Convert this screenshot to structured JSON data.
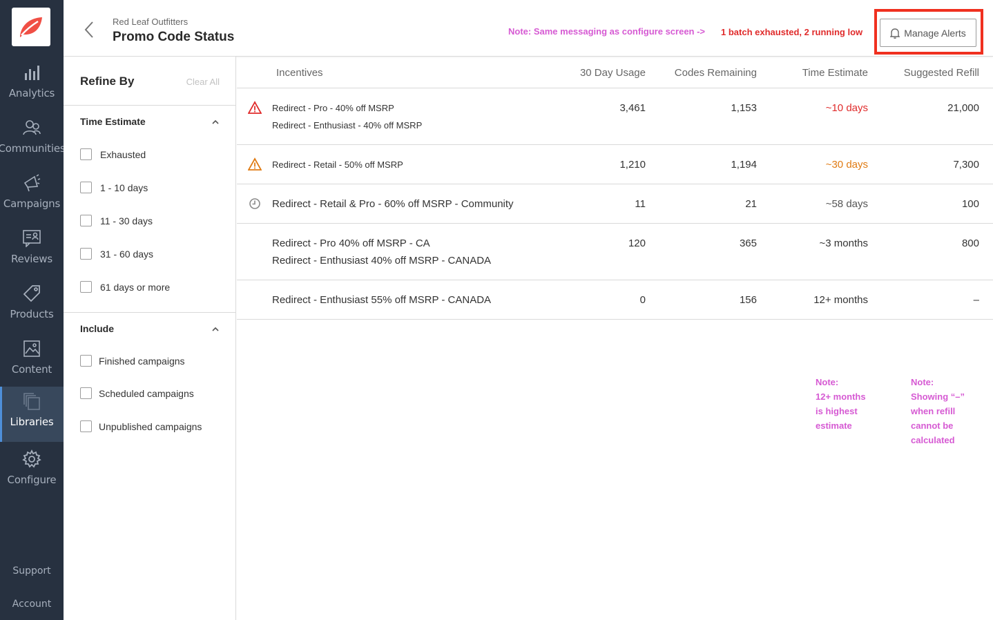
{
  "nav": {
    "items": [
      {
        "label": "Analytics"
      },
      {
        "label": "Communities"
      },
      {
        "label": "Campaigns"
      },
      {
        "label": "Reviews"
      },
      {
        "label": "Products"
      },
      {
        "label": "Content"
      },
      {
        "label": "Libraries"
      },
      {
        "label": "Configure"
      }
    ],
    "active": "Libraries",
    "support": "Support",
    "account": "Account"
  },
  "header": {
    "breadcrumb": "Red Leaf Outfitters",
    "title": "Promo Code Status",
    "note": "Note: Same messaging as configure screen ->",
    "status": "1 batch exhausted, 2 running low",
    "manage_alerts": "Manage Alerts"
  },
  "filters": {
    "title": "Refine By",
    "clear_all": "Clear All",
    "time_estimate": {
      "title": "Time Estimate",
      "options": [
        "Exhausted",
        "1 - 10 days",
        "11 - 30 days",
        "31 - 60 days",
        "61 days or more"
      ]
    },
    "include": {
      "title": "Include",
      "options": [
        "Finished campaigns",
        "Scheduled campaigns",
        "Unpublished campaigns"
      ]
    }
  },
  "table": {
    "columns": [
      "Incentives",
      "30 Day Usage",
      "Codes Remaining",
      "Time Estimate",
      "Suggested Refill"
    ],
    "rows": [
      {
        "icon": "warning-red",
        "incentives": [
          "Redirect - Pro - 40% off MSRP",
          "Redirect - Enthusiast - 40% off MSRP"
        ],
        "usage": "3,461",
        "remaining": "1,153",
        "estimate": "~10 days",
        "refill": "21,000"
      },
      {
        "icon": "warning-orange",
        "incentives": [
          "Redirect - Retail - 50% off MSRP"
        ],
        "usage": "1,210",
        "remaining": "1,194",
        "estimate": "~30 days",
        "refill": "7,300"
      },
      {
        "icon": "clock",
        "incentives": [
          "Redirect - Retail & Pro - 60% off MSRP - Community"
        ],
        "usage": "11",
        "remaining": "21",
        "estimate": "~58 days",
        "refill": "100"
      },
      {
        "icon": "",
        "incentives": [
          "Redirect - Pro 40% off MSRP - CA",
          "Redirect - Enthusiast 40% off MSRP - CANADA"
        ],
        "usage": "120",
        "remaining": "365",
        "estimate": "~3 months",
        "refill": "800"
      },
      {
        "icon": "",
        "incentives": [
          "Redirect - Enthusiast 55% off MSRP - CANADA"
        ],
        "usage": "0",
        "remaining": "156",
        "estimate": "12+ months",
        "refill": "–"
      }
    ]
  },
  "notes": {
    "estimate": [
      "Note:",
      "12+ months",
      "is highest",
      "estimate"
    ],
    "refill": [
      "Note:",
      "Showing “–”",
      "when refill",
      "cannot be",
      "calculated"
    ]
  },
  "colors": {
    "nav_bg": "#273140",
    "alert_red": "#e02b2b",
    "warning_orange": "#e07b13",
    "note_pink": "#d65ad3",
    "highlight_box": "#f0301f"
  }
}
